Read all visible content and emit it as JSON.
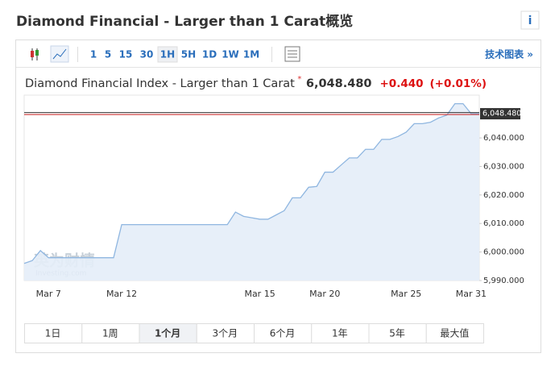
{
  "header": {
    "title": "Diamond Financial - Larger than 1 Carat概览",
    "info": "i"
  },
  "toolbar": {
    "intervals": [
      "1",
      "5",
      "15",
      "30",
      "1H",
      "5H",
      "1D",
      "1W",
      "1M"
    ],
    "active": "1H",
    "link": "技术图表 »"
  },
  "quote": {
    "name": "Diamond Financial Index - Larger than 1 Carat",
    "change": "+0.440",
    "change_percent": "(+0.01%)"
  },
  "watermark": {
    "brand": "英为财情",
    "site": "Investing.com"
  },
  "ranges": {
    "buttons": [
      "1日",
      "1周",
      "1个月",
      "3个月",
      "6个月",
      "1年",
      "5年",
      "最大值"
    ],
    "active": "1个月"
  },
  "chart_data": {
    "type": "area",
    "categories": [
      null,
      null,
      null,
      "Mar 7",
      null,
      null,
      null,
      null,
      null,
      null,
      null,
      null,
      "Mar 12",
      null,
      null,
      null,
      null,
      null,
      null,
      null,
      null,
      null,
      null,
      null,
      null,
      null,
      null,
      null,
      null,
      "Mar 15",
      null,
      null,
      null,
      null,
      null,
      null,
      null,
      "Mar 20",
      null,
      null,
      null,
      null,
      null,
      null,
      null,
      null,
      null,
      "Mar 25",
      null,
      null,
      null,
      null,
      null,
      null,
      null,
      "Mar 31",
      null
    ],
    "values": [
      5996,
      5997,
      6000.5,
      5998,
      5998,
      5998,
      5998,
      5998,
      5998,
      5998,
      5998,
      5998,
      6009.6,
      6009.6,
      6009.6,
      6009.6,
      6009.6,
      6009.6,
      6009.6,
      6009.6,
      6009.6,
      6009.6,
      6009.6,
      6009.6,
      6009.6,
      6009.6,
      6014,
      6012.5,
      6012,
      6011.5,
      6011.5,
      6013,
      6014.5,
      6019,
      6019,
      6022.7,
      6023,
      6028,
      6028,
      6030.5,
      6033,
      6033,
      6036,
      6036,
      6039.5,
      6039.5,
      6040.5,
      6042,
      6045,
      6045,
      6045.5,
      6047,
      6048,
      6052,
      6052,
      6048.5,
      6048.48
    ],
    "color": "#8fb6e0",
    "ylim": [
      5990,
      6055
    ],
    "yticks": [
      {
        "value": 5990,
        "label": "5,990.000"
      },
      {
        "value": 6000,
        "label": "6,000.000"
      },
      {
        "value": 6010,
        "label": "6,010.000"
      },
      {
        "value": 6020,
        "label": "6,020.000"
      },
      {
        "value": 6030,
        "label": "6,030.000"
      },
      {
        "value": 6040,
        "label": "6,040.000"
      }
    ],
    "last_value": {
      "value": 6048.48,
      "label": "6,048.480"
    },
    "grid": false
  }
}
